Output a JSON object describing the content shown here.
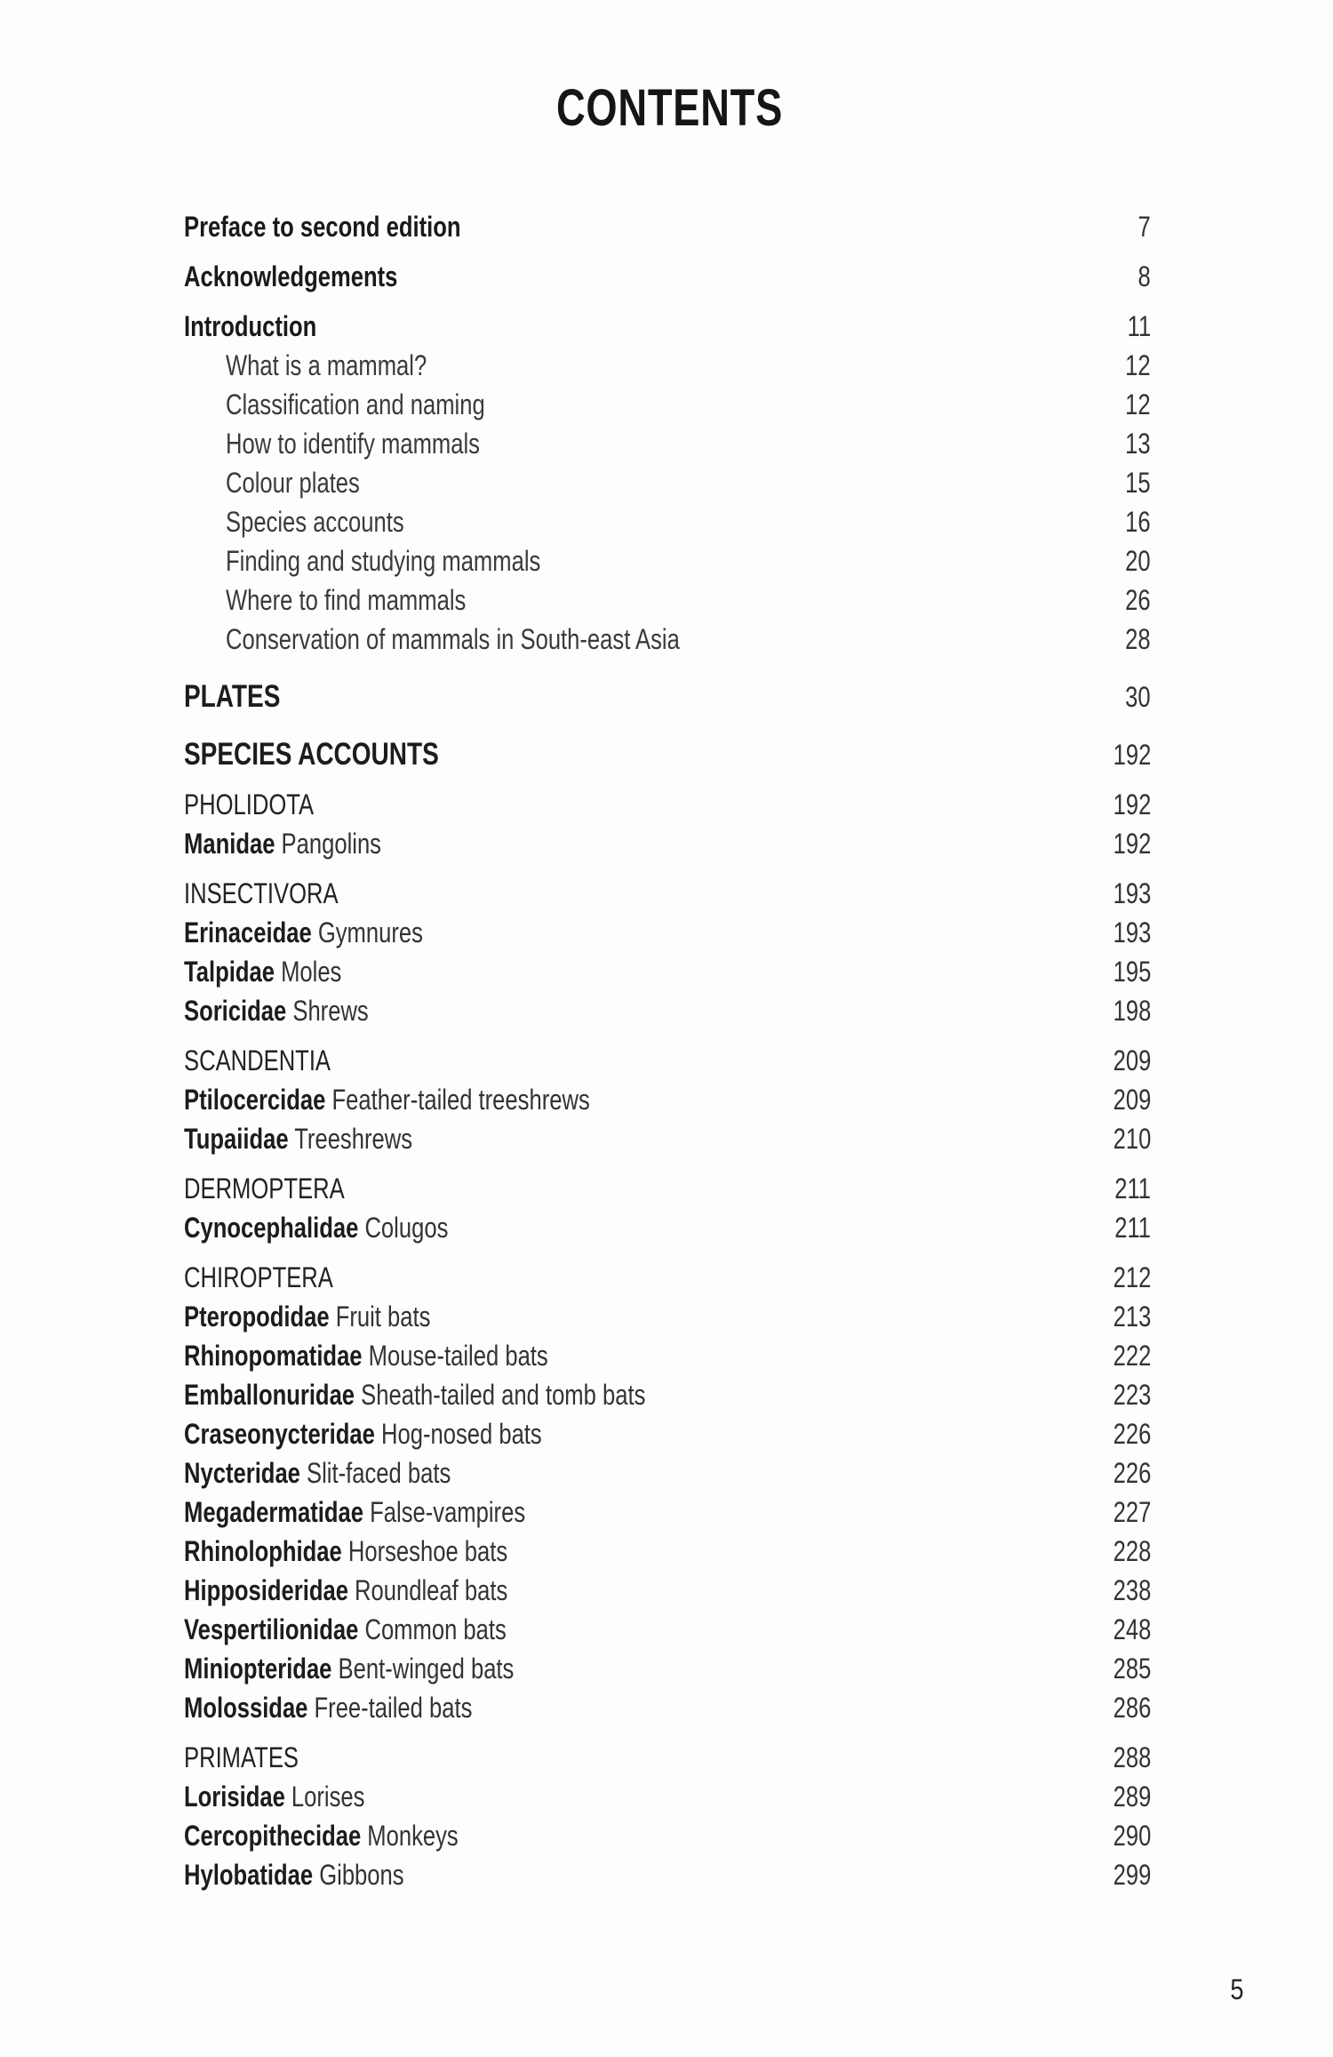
{
  "title": "CONTENTS",
  "page_number": "5",
  "entries": [
    {
      "kind": "main",
      "label": "Preface to second edition",
      "page": "7"
    },
    {
      "kind": "main",
      "label": "Acknowledgements",
      "page": "8"
    },
    {
      "kind": "main",
      "label": "Introduction",
      "page": "11"
    },
    {
      "kind": "sub",
      "label": "What is a mammal?",
      "page": "12"
    },
    {
      "kind": "sub",
      "label": "Classification and naming",
      "page": "12"
    },
    {
      "kind": "sub",
      "label": "How to identify mammals",
      "page": "13"
    },
    {
      "kind": "sub",
      "label": "Colour plates",
      "page": "15"
    },
    {
      "kind": "sub",
      "label": "Species accounts",
      "page": "16"
    },
    {
      "kind": "sub",
      "label": "Finding and studying mammals",
      "page": "20"
    },
    {
      "kind": "sub",
      "label": "Where to find mammals",
      "page": "26"
    },
    {
      "kind": "sub",
      "label": "Conservation of mammals in South-east Asia",
      "page": "28"
    },
    {
      "kind": "heading",
      "label": "PLATES",
      "page": "30"
    },
    {
      "kind": "heading",
      "label": "SPECIES ACCOUNTS",
      "page": "192"
    },
    {
      "kind": "order",
      "label": "PHOLIDOTA",
      "page": "192"
    },
    {
      "kind": "family",
      "family": "Manidae",
      "common": "Pangolins",
      "page": "192"
    },
    {
      "kind": "order",
      "label": "INSECTIVORA",
      "page": "193"
    },
    {
      "kind": "family",
      "family": "Erinaceidae",
      "common": "Gymnures",
      "page": "193"
    },
    {
      "kind": "family",
      "family": "Talpidae",
      "common": "Moles",
      "page": "195"
    },
    {
      "kind": "family",
      "family": "Soricidae",
      "common": "Shrews",
      "page": "198"
    },
    {
      "kind": "order",
      "label": "SCANDENTIA",
      "page": "209"
    },
    {
      "kind": "family",
      "family": "Ptilocercidae",
      "common": "Feather-tailed treeshrews",
      "page": "209"
    },
    {
      "kind": "family",
      "family": "Tupaiidae",
      "common": "Treeshrews",
      "page": "210"
    },
    {
      "kind": "order",
      "label": "DERMOPTERA",
      "page": "211"
    },
    {
      "kind": "family",
      "family": "Cynocephalidae",
      "common": "Colugos",
      "page": "211"
    },
    {
      "kind": "order",
      "label": "CHIROPTERA",
      "page": "212"
    },
    {
      "kind": "family",
      "family": "Pteropodidae",
      "common": "Fruit bats",
      "page": "213"
    },
    {
      "kind": "family",
      "family": "Rhinopomatidae",
      "common": "Mouse-tailed bats",
      "page": "222"
    },
    {
      "kind": "family",
      "family": "Emballonuridae",
      "common": "Sheath-tailed and tomb bats",
      "page": "223"
    },
    {
      "kind": "family",
      "family": "Craseonycteridae",
      "common": "Hog-nosed bats",
      "page": "226"
    },
    {
      "kind": "family",
      "family": "Nycteridae",
      "common": "Slit-faced bats",
      "page": "226"
    },
    {
      "kind": "family",
      "family": "Megadermatidae",
      "common": "False-vampires",
      "page": "227"
    },
    {
      "kind": "family",
      "family": "Rhinolophidae",
      "common": "Horseshoe bats",
      "page": "228"
    },
    {
      "kind": "family",
      "family": "Hipposideridae",
      "common": "Roundleaf bats",
      "page": "238"
    },
    {
      "kind": "family",
      "family": "Vespertilionidae",
      "common": "Common bats",
      "page": "248"
    },
    {
      "kind": "family",
      "family": "Miniopteridae",
      "common": "Bent-winged bats",
      "page": "285"
    },
    {
      "kind": "family",
      "family": "Molossidae",
      "common": "Free-tailed bats",
      "page": "286"
    },
    {
      "kind": "order",
      "label": "PRIMATES",
      "page": "288"
    },
    {
      "kind": "family",
      "family": "Lorisidae",
      "common": "Lorises",
      "page": "289"
    },
    {
      "kind": "family",
      "family": "Cercopithecidae",
      "common": "Monkeys",
      "page": "290"
    },
    {
      "kind": "family",
      "family": "Hylobatidae",
      "common": "Gibbons",
      "page": "299"
    }
  ]
}
